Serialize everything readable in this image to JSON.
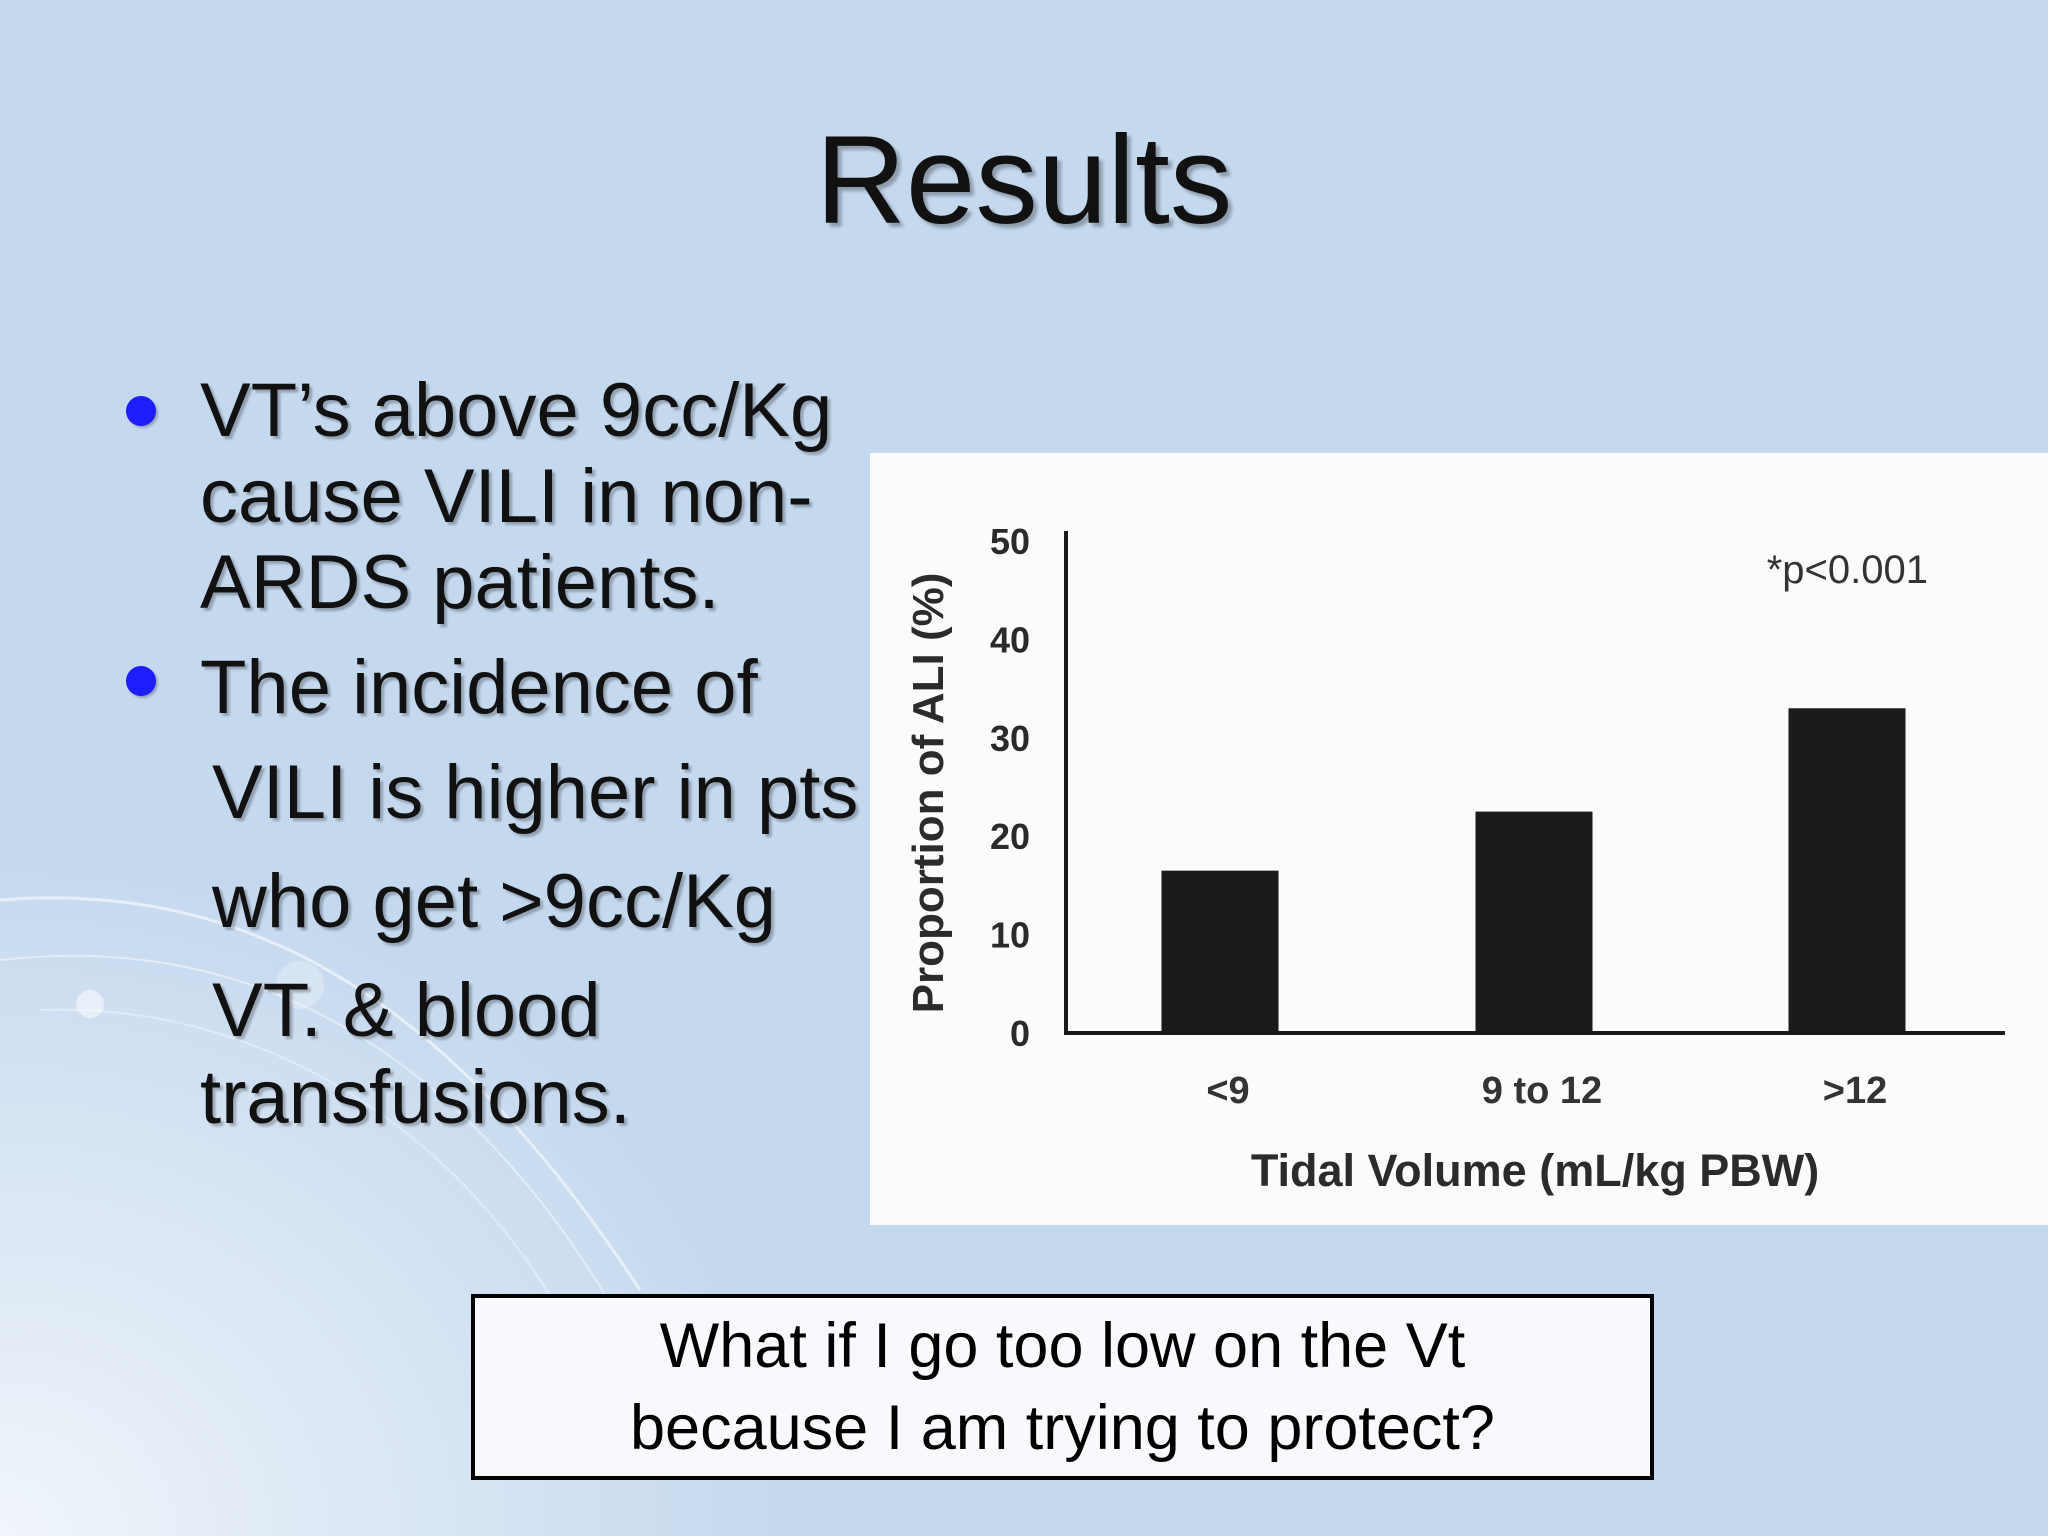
{
  "slide": {
    "title": "Results",
    "bullets": [
      {
        "lines": [
          "VT’s above 9cc/Kg",
          "cause VILI in non-",
          "ARDS patients."
        ]
      },
      {
        "lines": [
          "The incidence of",
          "VILI is higher in pts",
          "who get >9cc/Kg",
          "VT. & blood",
          "transfusions."
        ]
      }
    ],
    "callout": "What if I go too low on the Vt\nbecause I am trying to protect?"
  },
  "colors": {
    "background": "#c4d8ee",
    "bullet": "#1d1dff",
    "bar": "#1a191b"
  },
  "chart_data": {
    "type": "bar",
    "categories": [
      "<9",
      "9 to 12",
      ">12"
    ],
    "values": [
      16.5,
      22.5,
      33
    ],
    "xlabel": "Tidal Volume (mL/kg PBW)",
    "ylabel": "Proportion of ALI (%)",
    "ylim": [
      0,
      50
    ],
    "yticks": [
      0,
      10,
      20,
      30,
      40,
      50
    ],
    "annotation": "*p<0.001",
    "grid": false,
    "legend": "none"
  }
}
